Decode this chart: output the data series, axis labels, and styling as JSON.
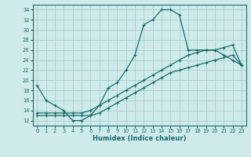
{
  "xlabel": "Humidex (Indice chaleur)",
  "bg_color": "#ceeaea",
  "grid_color": "#aacece",
  "line_color": "#1a6b6b",
  "xlim": [
    -0.5,
    23.5
  ],
  "ylim": [
    11,
    35
  ],
  "xticks": [
    0,
    1,
    2,
    3,
    4,
    5,
    6,
    7,
    8,
    9,
    10,
    11,
    12,
    13,
    14,
    15,
    16,
    17,
    18,
    19,
    20,
    21,
    22,
    23
  ],
  "yticks": [
    12,
    14,
    16,
    18,
    20,
    22,
    24,
    26,
    28,
    30,
    32,
    34
  ],
  "series1_x": [
    0,
    1,
    2,
    3,
    4,
    5,
    6,
    7,
    8,
    9,
    10,
    11,
    12,
    13,
    14,
    15,
    16,
    17,
    18,
    19,
    20,
    21,
    22,
    23
  ],
  "series1_y": [
    19,
    16,
    15,
    14,
    12,
    12,
    13,
    15,
    18.5,
    19.5,
    22,
    25,
    31,
    32,
    34,
    34,
    33,
    26,
    26,
    26,
    26,
    25,
    24,
    23
  ],
  "series2_x": [
    0,
    1,
    2,
    3,
    4,
    5,
    6,
    7,
    8,
    9,
    10,
    11,
    12,
    13,
    14,
    15,
    16,
    17,
    18,
    19,
    20,
    21,
    22,
    23
  ],
  "series2_y": [
    13.5,
    13.5,
    13.5,
    13.5,
    13.5,
    13.5,
    14,
    15,
    16,
    17,
    18,
    19,
    20,
    21,
    22,
    23,
    24,
    25,
    25.5,
    26,
    26,
    26.5,
    27,
    23
  ],
  "series3_x": [
    0,
    1,
    2,
    3,
    4,
    5,
    6,
    7,
    8,
    9,
    10,
    11,
    12,
    13,
    14,
    15,
    16,
    17,
    18,
    19,
    20,
    21,
    22,
    23
  ],
  "series3_y": [
    13,
    13,
    13,
    13,
    13,
    13,
    13,
    13.5,
    14.5,
    15.5,
    16.5,
    17.5,
    18.5,
    19.5,
    20.5,
    21.5,
    22,
    22.5,
    23,
    23.5,
    24,
    24.5,
    25,
    23
  ]
}
